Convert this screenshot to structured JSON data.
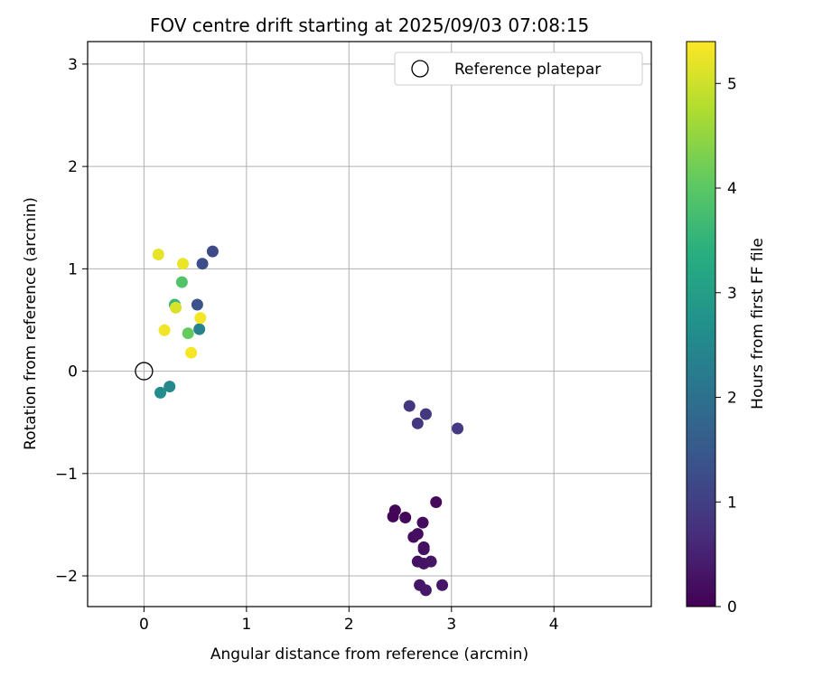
{
  "chart_data": {
    "type": "scatter",
    "title": "FOV centre drift starting at 2025/09/03 07:08:15",
    "xlabel": "Angular distance from reference (arcmin)",
    "ylabel": "Rotation from reference (arcmin)",
    "xlim": [
      -0.55,
      4.95
    ],
    "ylim": [
      -2.3,
      3.22
    ],
    "xticks": [
      0,
      1,
      2,
      3,
      4
    ],
    "yticks": [
      -2,
      -1,
      0,
      1,
      2,
      3
    ],
    "xtick_labels": [
      "0",
      "1",
      "2",
      "3",
      "4"
    ],
    "ytick_labels": [
      "−2",
      "−1",
      "0",
      "1",
      "2",
      "3"
    ],
    "grid": true,
    "legend": {
      "position": "top-right",
      "entries": [
        {
          "label": "Reference platepar",
          "marker": "open-circle"
        }
      ]
    },
    "reference_point": {
      "x": 0,
      "y": 0
    },
    "colorbar": {
      "label": "Hours from first FF file",
      "range": [
        0,
        5.4
      ],
      "ticks": [
        0,
        1,
        2,
        3,
        4,
        5
      ],
      "tick_labels": [
        "0",
        "1",
        "2",
        "3",
        "4",
        "5"
      ],
      "colormap": "viridis"
    },
    "points": [
      {
        "x": 2.43,
        "y": -1.42,
        "t": 0.05
      },
      {
        "x": 2.45,
        "y": -1.36,
        "t": 0.08
      },
      {
        "x": 2.55,
        "y": -1.43,
        "t": 0.1
      },
      {
        "x": 2.85,
        "y": -1.28,
        "t": 0.12
      },
      {
        "x": 2.72,
        "y": -1.48,
        "t": 0.15
      },
      {
        "x": 2.63,
        "y": -1.62,
        "t": 0.18
      },
      {
        "x": 2.67,
        "y": -1.59,
        "t": 0.2
      },
      {
        "x": 2.73,
        "y": -1.72,
        "t": 0.22
      },
      {
        "x": 2.73,
        "y": -1.74,
        "t": 0.24
      },
      {
        "x": 2.67,
        "y": -1.86,
        "t": 0.26
      },
      {
        "x": 2.73,
        "y": -1.88,
        "t": 0.28
      },
      {
        "x": 2.8,
        "y": -1.86,
        "t": 0.3
      },
      {
        "x": 2.69,
        "y": -2.09,
        "t": 0.32
      },
      {
        "x": 2.91,
        "y": -2.09,
        "t": 0.34
      },
      {
        "x": 2.75,
        "y": -2.14,
        "t": 0.36
      },
      {
        "x": 2.59,
        "y": -0.34,
        "t": 0.85
      },
      {
        "x": 2.75,
        "y": -0.42,
        "t": 0.88
      },
      {
        "x": 2.67,
        "y": -0.51,
        "t": 0.9
      },
      {
        "x": 3.06,
        "y": -0.56,
        "t": 0.92
      },
      {
        "x": 0.67,
        "y": 1.17,
        "t": 1.2
      },
      {
        "x": 0.57,
        "y": 1.05,
        "t": 1.25
      },
      {
        "x": 0.52,
        "y": 0.65,
        "t": 1.35
      },
      {
        "x": 0.54,
        "y": 0.41,
        "t": 2.4
      },
      {
        "x": 0.25,
        "y": -0.15,
        "t": 2.5
      },
      {
        "x": 0.16,
        "y": -0.21,
        "t": 2.6
      },
      {
        "x": 0.3,
        "y": 0.65,
        "t": 3.6
      },
      {
        "x": 0.37,
        "y": 0.87,
        "t": 3.9
      },
      {
        "x": 0.43,
        "y": 0.37,
        "t": 4.1
      },
      {
        "x": 0.31,
        "y": 0.62,
        "t": 5.1
      },
      {
        "x": 0.14,
        "y": 1.14,
        "t": 5.2
      },
      {
        "x": 0.38,
        "y": 1.05,
        "t": 5.25
      },
      {
        "x": 0.2,
        "y": 0.4,
        "t": 5.3
      },
      {
        "x": 0.55,
        "y": 0.52,
        "t": 5.32
      },
      {
        "x": 0.46,
        "y": 0.18,
        "t": 5.35
      }
    ]
  }
}
